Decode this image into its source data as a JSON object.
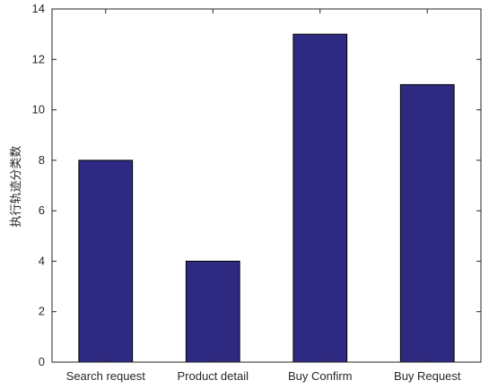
{
  "chart_data": {
    "type": "bar",
    "categories": [
      "Search request",
      "Product detail",
      "Buy Confirm",
      "Buy Request"
    ],
    "values": [
      8,
      4,
      13,
      11
    ],
    "ylabel": "执行轨迹分类数",
    "xlabel": "",
    "title": "",
    "ylim": [
      0,
      14
    ],
    "yticks": [
      0,
      2,
      4,
      6,
      8,
      10,
      12,
      14
    ],
    "grid": false,
    "legend": "none",
    "bar_color": "#2e2a82"
  }
}
